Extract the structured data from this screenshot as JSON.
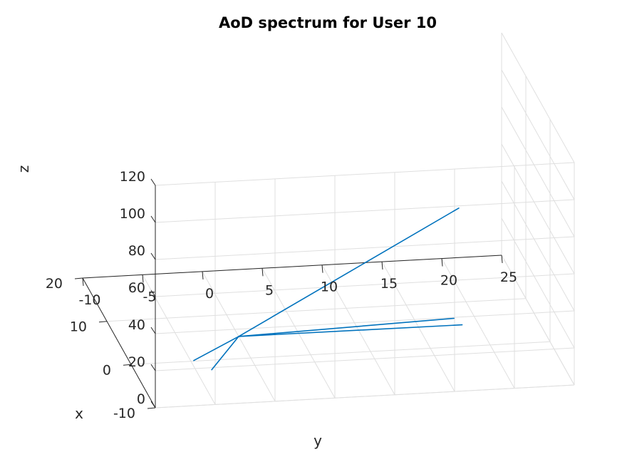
{
  "chart_data": {
    "type": "line",
    "title": "AoD spectrum for User 10",
    "xlabel": "x",
    "ylabel": "y",
    "zlabel": "z",
    "xlim": [
      -10,
      20
    ],
    "ylim": [
      -10,
      25
    ],
    "zlim": [
      0,
      120
    ],
    "x_ticks": [
      "-10",
      "0",
      "10",
      "20"
    ],
    "y_ticks": [
      "-10",
      "-5",
      "0",
      "5",
      "10",
      "15",
      "20",
      "25"
    ],
    "z_ticks": [
      "0",
      "20",
      "40",
      "60",
      "80",
      "100",
      "120"
    ],
    "grid": true,
    "line_color": "#0072bd",
    "series": [
      {
        "segments": [
          [
            [
              5,
              0,
              0
            ],
            [
              -6.1,
              -4.5,
              9.5
            ]
          ],
          [
            [
              5,
              0,
              0
            ],
            [
              -5.1,
              -5.8,
              12.6
            ]
          ],
          [
            [
              5,
              0,
              0
            ],
            [
              -5.7,
              16.5,
              25.4
            ]
          ],
          [
            [
              5,
              0,
              0
            ],
            [
              -5.8,
              15.8,
              29.4
            ]
          ],
          [
            [
              5,
              0,
              0
            ],
            [
              -5.8,
              16.2,
              88.7
            ]
          ]
        ]
      }
    ]
  }
}
